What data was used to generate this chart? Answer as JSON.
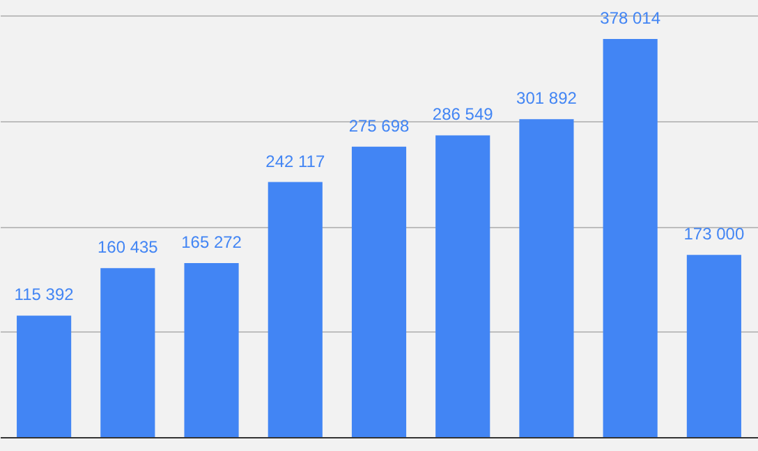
{
  "chart_data": {
    "type": "bar",
    "categories": [
      null,
      null,
      null,
      null,
      null,
      null,
      null,
      null,
      null
    ],
    "values": [
      115392,
      160435,
      165272,
      242117,
      275698,
      286549,
      301892,
      378014,
      173000
    ],
    "value_labels": [
      "115 392",
      "160 435",
      "165 272",
      "242 117",
      "275 698",
      "286 549",
      "301 892",
      "378 014",
      "173 000"
    ],
    "color": "#4285f4",
    "ylim": [
      0,
      415000
    ],
    "yticks": [
      {
        "value": 100000,
        "label": null
      },
      {
        "value": 200000,
        "label": null
      },
      {
        "value": 300000,
        "label": null
      },
      {
        "value": 400000,
        "label": null
      }
    ],
    "grid": "y"
  }
}
